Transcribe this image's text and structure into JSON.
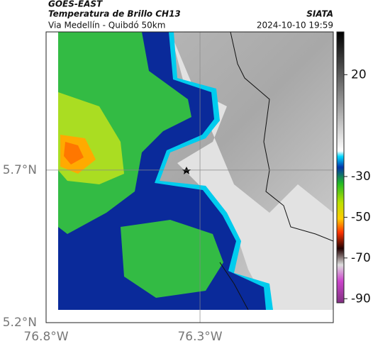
{
  "header": {
    "satellite": "GOES-EAST",
    "product": "Temperatura de Brillo CH13",
    "source": "SIATA",
    "region": "Via Medellín - Quibdó 50km",
    "timestamp": "2024-10-10 19:59"
  },
  "map": {
    "xlim": [
      -76.8,
      -75.867
    ],
    "ylim": [
      5.2,
      6.153
    ],
    "xticks": [
      {
        "value": -76.8,
        "label": "76.8°W"
      },
      {
        "value": -76.3,
        "label": "76.3°W"
      }
    ],
    "yticks": [
      {
        "value": 5.2,
        "label": "5.2°N"
      },
      {
        "value": 5.7,
        "label": "5.7°N"
      }
    ],
    "grid": true
  },
  "colorbar": {
    "lim": [
      41,
      -92
    ],
    "ticks": [
      20,
      -30,
      -50,
      -70,
      -90
    ]
  }
}
